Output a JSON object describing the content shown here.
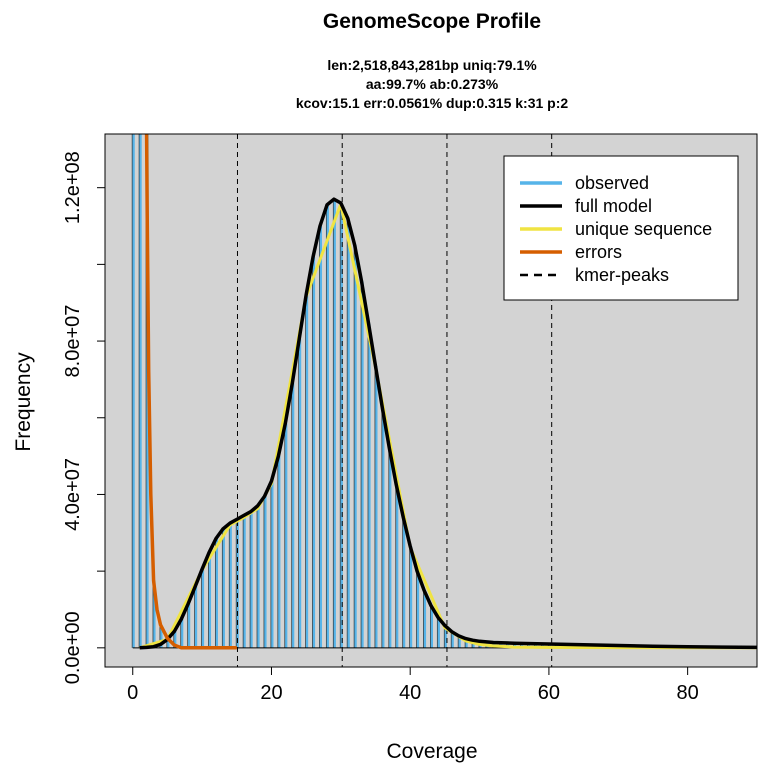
{
  "chart_data": {
    "type": "line",
    "title": "GenomeScope Profile",
    "subtitle_lines": [
      "len:2,518,843,281bp uniq:79.1%",
      "aa:99.7% ab:0.273%",
      "kcov:15.1 err:0.0561%  dup:0.315  k:31 p:2"
    ],
    "xlabel": "Coverage",
    "ylabel": "Frequency",
    "xlim": [
      -4,
      90
    ],
    "ylim": [
      -5000000,
      134000000
    ],
    "x_ticks": [
      0,
      20,
      40,
      60,
      80
    ],
    "x_tick_labels": [
      "0",
      "20",
      "40",
      "60",
      "80"
    ],
    "y_ticks": [
      0,
      20000000,
      40000000,
      60000000,
      80000000,
      100000000,
      120000000
    ],
    "y_tick_labels": [
      "0.0e+00",
      "",
      "4.0e+07",
      "",
      "8.0e+07",
      "",
      "1.2e+08"
    ],
    "background": "#d3d3d3",
    "legend": {
      "position": "top-right",
      "entries": [
        {
          "label": "observed",
          "color": "#56b4e9",
          "style": "solid"
        },
        {
          "label": "full model",
          "color": "#000000",
          "style": "solid"
        },
        {
          "label": "unique sequence",
          "color": "#f0e442",
          "style": "solid"
        },
        {
          "label": "errors",
          "color": "#d55e00",
          "style": "solid"
        },
        {
          "label": "kmer-peaks",
          "color": "#000000",
          "style": "dashed"
        }
      ]
    },
    "kmer_peaks": [
      15.1,
      30.2,
      45.3,
      60.4
    ],
    "series": [
      {
        "name": "full model",
        "color": "#000000",
        "x": [
          1,
          2,
          3,
          4,
          5,
          6,
          7,
          8,
          9,
          10,
          11,
          12,
          13,
          14,
          15,
          16,
          17,
          18,
          19,
          20,
          21,
          22,
          23,
          24,
          25,
          26,
          27,
          28,
          29,
          30,
          31,
          32,
          33,
          34,
          35,
          36,
          37,
          38,
          39,
          40,
          41,
          42,
          43,
          44,
          45,
          46,
          47,
          48,
          49,
          50,
          52,
          55,
          60,
          65,
          70,
          75,
          80,
          85,
          90
        ],
        "y": [
          0,
          100000,
          300000,
          900000,
          2200000,
          4300000,
          7500000,
          11500000,
          16000000,
          20500000,
          24800000,
          28500000,
          31000000,
          32500000,
          33500000,
          34500000,
          35500000,
          37000000,
          39500000,
          43500000,
          50000000,
          58500000,
          69000000,
          80500000,
          92000000,
          102000000,
          110000000,
          115500000,
          117000000,
          116000000,
          112000000,
          105000000,
          95500000,
          84500000,
          73500000,
          62500000,
          52000000,
          42500000,
          34000000,
          26500000,
          20000000,
          15000000,
          11000000,
          8000000,
          5800000,
          4200000,
          3100000,
          2400000,
          2000000,
          1700000,
          1400000,
          1200000,
          1000000,
          800000,
          600000,
          400000,
          300000,
          200000,
          100000
        ]
      },
      {
        "name": "unique sequence",
        "color": "#f0e442",
        "x": [
          1,
          5,
          10,
          14,
          16,
          18,
          20,
          25,
          30,
          35,
          40,
          45,
          48,
          50,
          52,
          55,
          60,
          70,
          80,
          90
        ],
        "y": [
          0,
          2200000,
          20300000,
          32000000,
          34000000,
          36300000,
          42800000,
          91600000,
          115700000,
          73200000,
          26200000,
          5200000,
          1800000,
          900000,
          500000,
          200000,
          100000,
          50000,
          20000,
          0
        ]
      },
      {
        "name": "errors",
        "color": "#d55e00",
        "x": [
          2,
          2.1,
          2.3,
          2.6,
          3,
          3.5,
          4,
          5,
          6,
          7,
          8,
          10,
          12,
          15
        ],
        "y": [
          134000000,
          110000000,
          72000000,
          40000000,
          17500000,
          10000000,
          6000000,
          2500000,
          700000,
          0,
          0,
          0,
          0,
          0
        ]
      }
    ]
  }
}
